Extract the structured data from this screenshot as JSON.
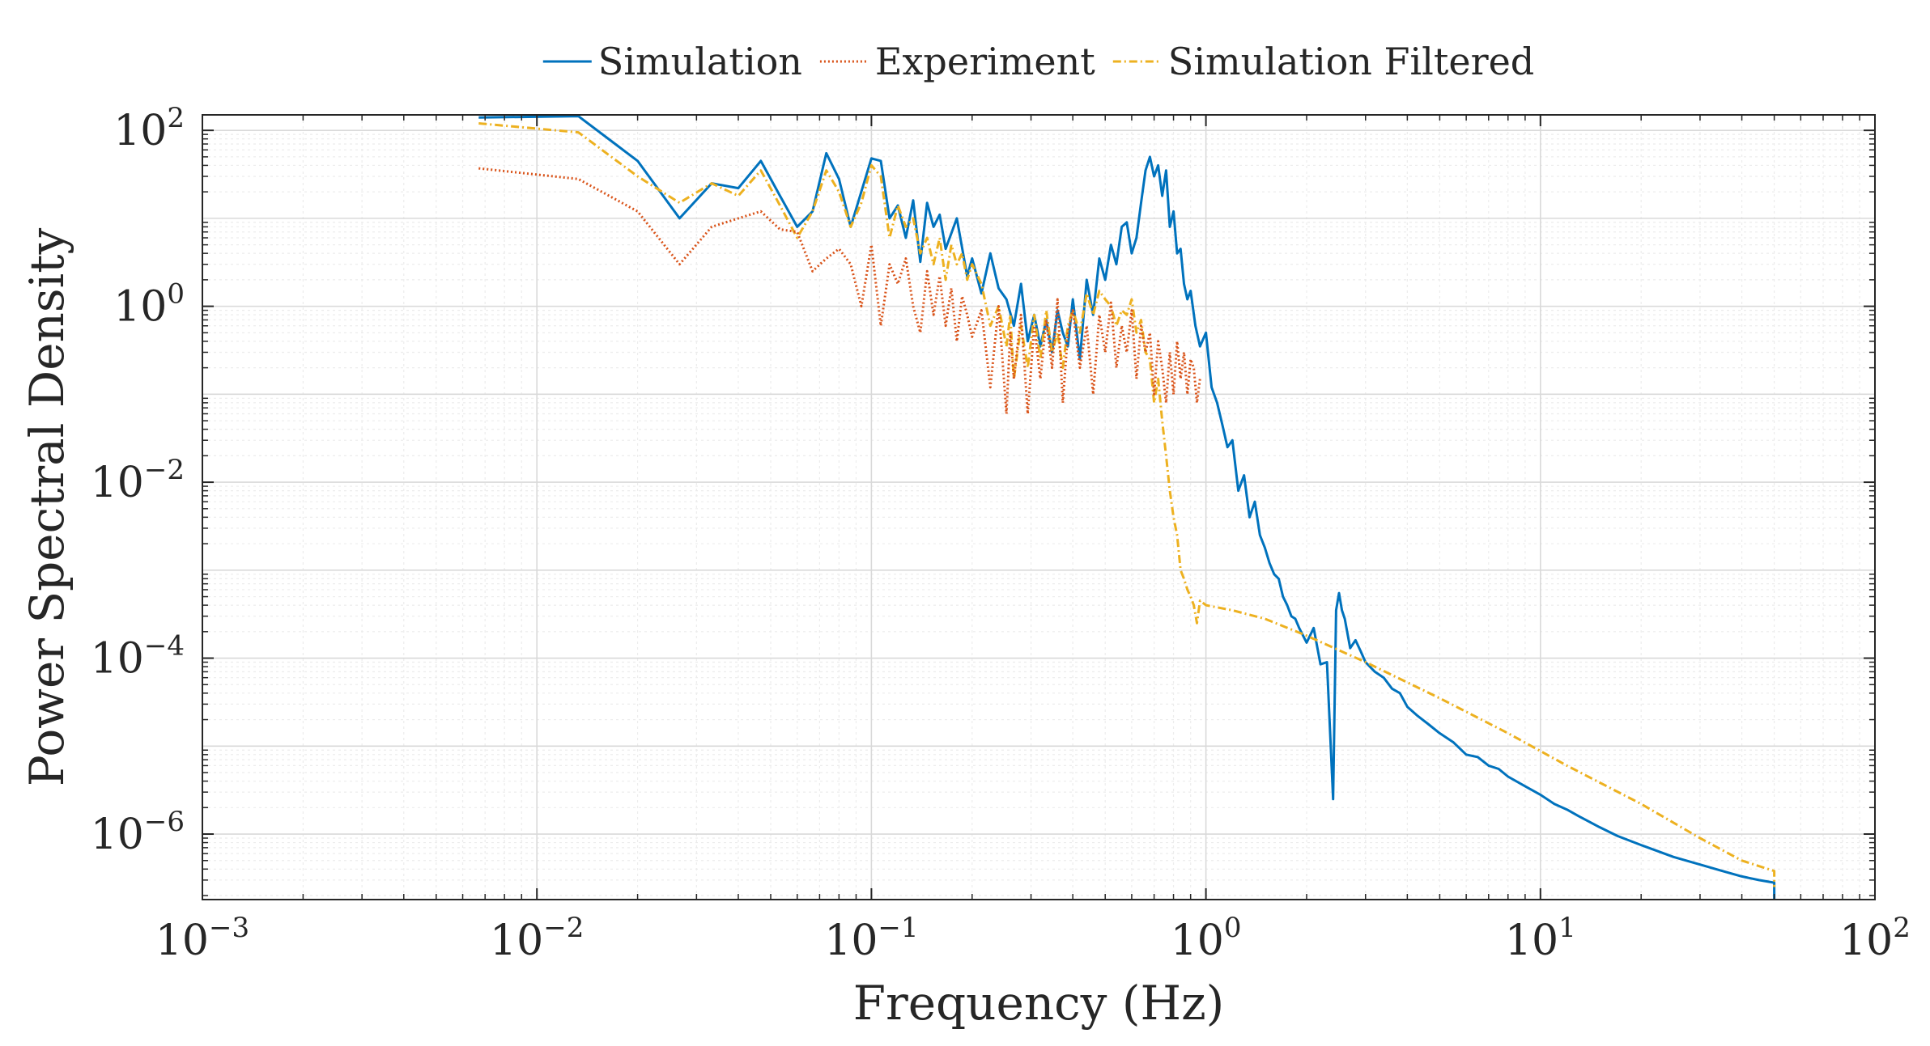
{
  "chart_data": {
    "type": "line",
    "xlabel": "Frequency (Hz)",
    "ylabel": "Power Spectral Density",
    "xscale": "log",
    "yscale": "log",
    "xlim": [
      0.001,
      100
    ],
    "ylim": [
      1.8e-07,
      150
    ],
    "grid": true,
    "minor_grid": true,
    "legend_position": "top-center",
    "x_ticks": [
      {
        "value": 0.001,
        "base": "10",
        "exp": "−3"
      },
      {
        "value": 0.01,
        "base": "10",
        "exp": "−2"
      },
      {
        "value": 0.1,
        "base": "10",
        "exp": "−1"
      },
      {
        "value": 1,
        "base": "10",
        "exp": "0"
      },
      {
        "value": 10,
        "base": "10",
        "exp": "1"
      },
      {
        "value": 100,
        "base": "10",
        "exp": "2"
      }
    ],
    "y_ticks": [
      {
        "value": 100,
        "base": "10",
        "exp": "2"
      },
      {
        "value": 1,
        "base": "10",
        "exp": "0"
      },
      {
        "value": 0.01,
        "base": "10",
        "exp": "−2"
      },
      {
        "value": 0.0001,
        "base": "10",
        "exp": "−4"
      },
      {
        "value": 1e-06,
        "base": "10",
        "exp": "−6"
      }
    ],
    "series": [
      {
        "name": "Simulation",
        "color": "#0072BD",
        "dash": "solid",
        "x": [
          0.0067,
          0.0133,
          0.02,
          0.0267,
          0.0333,
          0.04,
          0.0467,
          0.0533,
          0.06,
          0.0667,
          0.0733,
          0.08,
          0.0867,
          0.1,
          0.1067,
          0.1133,
          0.12,
          0.1267,
          0.1333,
          0.14,
          0.1467,
          0.1533,
          0.16,
          0.1667,
          0.18,
          0.1933,
          0.2,
          0.2133,
          0.2267,
          0.24,
          0.2533,
          0.2667,
          0.28,
          0.2933,
          0.3067,
          0.32,
          0.3333,
          0.3467,
          0.36,
          0.3733,
          0.3867,
          0.4,
          0.42,
          0.44,
          0.46,
          0.48,
          0.5,
          0.52,
          0.54,
          0.56,
          0.58,
          0.6,
          0.62,
          0.64,
          0.66,
          0.68,
          0.7,
          0.72,
          0.74,
          0.76,
          0.78,
          0.8,
          0.82,
          0.84,
          0.86,
          0.88,
          0.9,
          0.93,
          0.96,
          1.0,
          1.04,
          1.08,
          1.12,
          1.16,
          1.2,
          1.25,
          1.3,
          1.35,
          1.4,
          1.45,
          1.5,
          1.55,
          1.6,
          1.65,
          1.7,
          1.75,
          1.8,
          1.85,
          1.9,
          2.0,
          2.1,
          2.2,
          2.3,
          2.4,
          2.45,
          2.5,
          2.55,
          2.6,
          2.7,
          2.8,
          2.9,
          3.0,
          3.2,
          3.4,
          3.6,
          3.8,
          4.0,
          4.3,
          4.6,
          5.0,
          5.5,
          6.0,
          6.5,
          7.0,
          7.5,
          8.0,
          9.0,
          10.0,
          11.0,
          12.0,
          13.0,
          15.0,
          17.0,
          20.0,
          25.0,
          30.0,
          35.0,
          40.0,
          45.0,
          50.0,
          50.0
        ],
        "y": [
          140,
          145,
          45,
          10,
          25,
          22,
          45,
          18,
          8,
          12,
          55,
          28,
          8,
          48,
          45,
          10,
          14,
          6,
          16,
          3.2,
          15,
          8,
          11,
          4.5,
          10,
          2.2,
          3.5,
          1.4,
          4,
          1.6,
          1.2,
          0.6,
          1.8,
          0.4,
          0.8,
          0.35,
          0.7,
          0.3,
          0.9,
          0.5,
          0.35,
          1.2,
          0.25,
          2,
          0.8,
          3.5,
          2,
          5,
          3,
          8,
          9,
          4,
          6,
          15,
          35,
          50,
          30,
          40,
          18,
          35,
          8,
          12,
          4,
          4.5,
          1.8,
          1.2,
          1.5,
          0.6,
          0.35,
          0.5,
          0.12,
          0.08,
          0.045,
          0.025,
          0.03,
          0.008,
          0.012,
          0.004,
          0.006,
          0.0025,
          0.0018,
          0.0012,
          0.0009,
          0.0008,
          0.0005,
          0.0004,
          0.0003,
          0.00028,
          0.00022,
          0.00015,
          0.00022,
          8.5e-05,
          9e-05,
          2.5e-06,
          0.00035,
          0.00055,
          0.00035,
          0.00028,
          0.00013,
          0.00016,
          0.00012,
          9e-05,
          7e-05,
          6e-05,
          4.5e-05,
          4e-05,
          2.8e-05,
          2.2e-05,
          1.8e-05,
          1.4e-05,
          1.1e-05,
          8e-06,
          7.5e-06,
          6e-06,
          5.5e-06,
          4.5e-06,
          3.5e-06,
          2.8e-06,
          2.2e-06,
          1.9e-06,
          1.6e-06,
          1.2e-06,
          9.5e-07,
          7.5e-07,
          5.5e-07,
          4.5e-07,
          3.8e-07,
          3.3e-07,
          3e-07,
          2.8e-07,
          1.8e-07
        ]
      },
      {
        "name": "Experiment",
        "color": "#D95319",
        "dash": "dotted",
        "x": [
          0.0067,
          0.0133,
          0.02,
          0.0267,
          0.0333,
          0.04,
          0.0467,
          0.0533,
          0.06,
          0.0667,
          0.0733,
          0.08,
          0.0867,
          0.0933,
          0.1,
          0.1067,
          0.1133,
          0.12,
          0.1267,
          0.1333,
          0.14,
          0.1467,
          0.1533,
          0.16,
          0.1667,
          0.1733,
          0.18,
          0.1867,
          0.1933,
          0.2,
          0.2133,
          0.2267,
          0.24,
          0.2533,
          0.26,
          0.2667,
          0.28,
          0.2933,
          0.3067,
          0.32,
          0.3333,
          0.3467,
          0.36,
          0.3733,
          0.3867,
          0.4,
          0.42,
          0.44,
          0.46,
          0.48,
          0.5,
          0.52,
          0.54,
          0.56,
          0.58,
          0.6,
          0.62,
          0.64,
          0.66,
          0.68,
          0.7,
          0.72,
          0.74,
          0.76,
          0.78,
          0.8,
          0.82,
          0.84,
          0.86,
          0.88,
          0.9,
          0.92,
          0.94,
          0.96
        ],
        "y": [
          37,
          28,
          12,
          3,
          8,
          10,
          12,
          7.5,
          7,
          2.5,
          3.5,
          4.5,
          3,
          1,
          5,
          0.6,
          3,
          1.8,
          3.5,
          1,
          0.5,
          2.5,
          0.8,
          2.2,
          0.6,
          1.6,
          0.4,
          1.3,
          0.8,
          0.45,
          0.9,
          0.12,
          1.0,
          0.06,
          0.5,
          0.15,
          0.8,
          0.06,
          0.6,
          0.15,
          0.7,
          0.2,
          1.2,
          0.08,
          0.5,
          0.9,
          0.2,
          0.6,
          0.1,
          0.8,
          0.3,
          1.1,
          0.2,
          0.6,
          0.3,
          0.9,
          0.15,
          0.6,
          0.3,
          0.5,
          0.1,
          0.4,
          0.2,
          0.08,
          0.3,
          0.1,
          0.4,
          0.15,
          0.3,
          0.1,
          0.25,
          0.2,
          0.08,
          0.15
        ]
      },
      {
        "name": "Simulation Filtered",
        "color": "#EDB120",
        "dash": "dashdot",
        "x": [
          0.0067,
          0.0133,
          0.02,
          0.0267,
          0.0333,
          0.04,
          0.0467,
          0.0533,
          0.06,
          0.0667,
          0.0733,
          0.08,
          0.0867,
          0.0933,
          0.1,
          0.1067,
          0.1133,
          0.12,
          0.1267,
          0.1333,
          0.14,
          0.1467,
          0.1533,
          0.16,
          0.1667,
          0.1733,
          0.18,
          0.1867,
          0.1933,
          0.2,
          0.2133,
          0.2267,
          0.24,
          0.2533,
          0.26,
          0.2667,
          0.28,
          0.2933,
          0.3067,
          0.32,
          0.3333,
          0.3467,
          0.36,
          0.3733,
          0.3867,
          0.4,
          0.42,
          0.44,
          0.46,
          0.48,
          0.5,
          0.52,
          0.54,
          0.56,
          0.58,
          0.6,
          0.62,
          0.64,
          0.66,
          0.68,
          0.7,
          0.72,
          0.74,
          0.76,
          0.78,
          0.8,
          0.82,
          0.84,
          0.86,
          0.88,
          0.9,
          0.92,
          0.94,
          0.96,
          1.0,
          1.2,
          1.5,
          2.0,
          3.0,
          5.0,
          8.0,
          12.0,
          20.0,
          30.0,
          40.0,
          50.0,
          50.0
        ],
        "y": [
          120,
          95,
          30,
          15,
          25,
          18,
          35,
          14,
          6,
          12,
          35,
          20,
          8,
          15,
          40,
          30,
          6,
          14,
          8,
          10,
          4,
          6,
          3,
          6,
          2,
          5,
          3,
          4,
          2,
          3,
          1.8,
          0.6,
          1,
          0.35,
          0.8,
          0.15,
          0.6,
          0.2,
          0.8,
          0.25,
          0.9,
          0.3,
          0.5,
          0.2,
          0.6,
          0.9,
          0.5,
          1.4,
          0.8,
          1.5,
          1.2,
          1.0,
          0.6,
          0.9,
          0.8,
          1.2,
          0.5,
          0.7,
          0.3,
          0.25,
          0.08,
          0.15,
          0.05,
          0.02,
          0.008,
          0.004,
          0.0025,
          0.001,
          0.0008,
          0.0006,
          0.0005,
          0.0004,
          0.00025,
          0.00045,
          0.0004,
          0.00035,
          0.00028,
          0.00018,
          9e-05,
          3.5e-05,
          1.4e-05,
          6e-06,
          2.2e-06,
          9e-07,
          5e-07,
          3.8e-07,
          2.5e-07
        ]
      }
    ]
  }
}
